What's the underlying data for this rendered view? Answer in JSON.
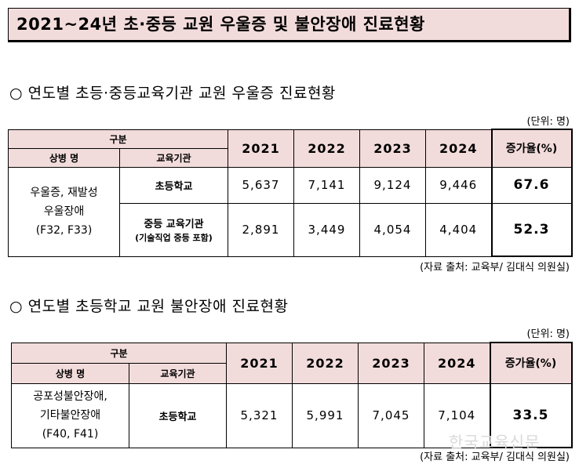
{
  "title": "2021~24년 초·중등 교원 우울증 및 불안장애 진료현황",
  "section1": {
    "heading": "○ 연도별 초등·중등교육기관 교원 우울증 진료현황",
    "unit": "(단위: 명)",
    "header": {
      "group": "구분",
      "disease": "상병 명",
      "institution": "교육기관",
      "years": [
        "2021",
        "2022",
        "2023",
        "2024"
      ],
      "rate": "증가율(%)"
    },
    "category_lines": [
      "우울증, 재발성",
      "우울장애",
      "(F32, F33)"
    ],
    "rows": [
      {
        "institution": "초등학교",
        "institution_sub": "",
        "values": [
          "5,637",
          "7,141",
          "9,124",
          "9,446"
        ],
        "rate": "67.6"
      },
      {
        "institution": "중등 교육기관",
        "institution_sub": "(기술직업 중등 포함)",
        "values": [
          "2,891",
          "3,449",
          "4,054",
          "4,404"
        ],
        "rate": "52.3"
      }
    ],
    "source": "(자료 출처: 교육부/ 김대식 의원실)"
  },
  "section2": {
    "heading": "○ 연도별 초등학교 교원 불안장애 진료현황",
    "unit": "(단위: 명)",
    "header": {
      "group": "구분",
      "disease": "상병 명",
      "institution": "교육기관",
      "years": [
        "2021",
        "2022",
        "2023",
        "2024"
      ],
      "rate": "증가율(%)"
    },
    "category_lines": [
      "공포성불안장애,",
      "기타불안장애",
      "(F40, F41)"
    ],
    "rows": [
      {
        "institution": "초등학교",
        "values": [
          "5,321",
          "5,991",
          "7,045",
          "7,104"
        ],
        "rate": "33.5"
      }
    ],
    "source": "(자료 출처: 교육부/ 김대식 의원실)"
  },
  "watermark": "한국교육신문"
}
